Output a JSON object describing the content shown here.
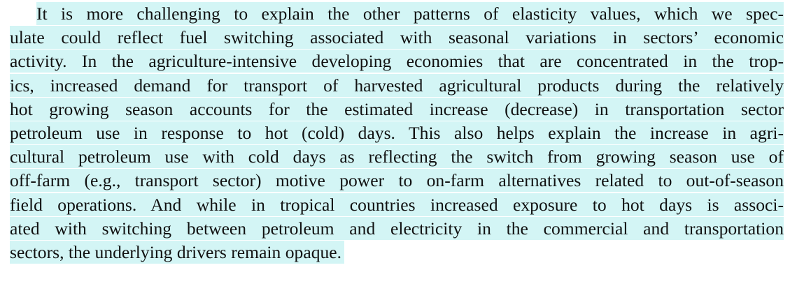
{
  "paragraph": {
    "lines": [
      "It is more challenging to explain the other patterns of elasticity values, which we spec-",
      "ulate could reflect fuel switching associated with seasonal variations in sectors’ economic",
      "activity. In the agriculture-intensive developing economies that are concentrated in the trop-",
      "ics, increased demand for transport of harvested agricultural products during the relatively",
      "hot growing season accounts for the estimated increase (decrease) in transportation sector",
      "petroleum use in response to hot (cold) days. This also helps explain the increase in agri-",
      "cultural petroleum use with cold days as reflecting the switch from growing season use of",
      "off-farm (e.g., transport sector) motive power to on-farm alternatives related to out-of-season",
      "field operations. And while in tropical countries increased exposure to hot days is associ-",
      "ated with switching between petroleum and electricity in the commercial and transportation",
      "sectors, the underlying drivers remain opaque."
    ]
  },
  "colors": {
    "highlight": "#d3f5f5",
    "text": "#111111"
  }
}
